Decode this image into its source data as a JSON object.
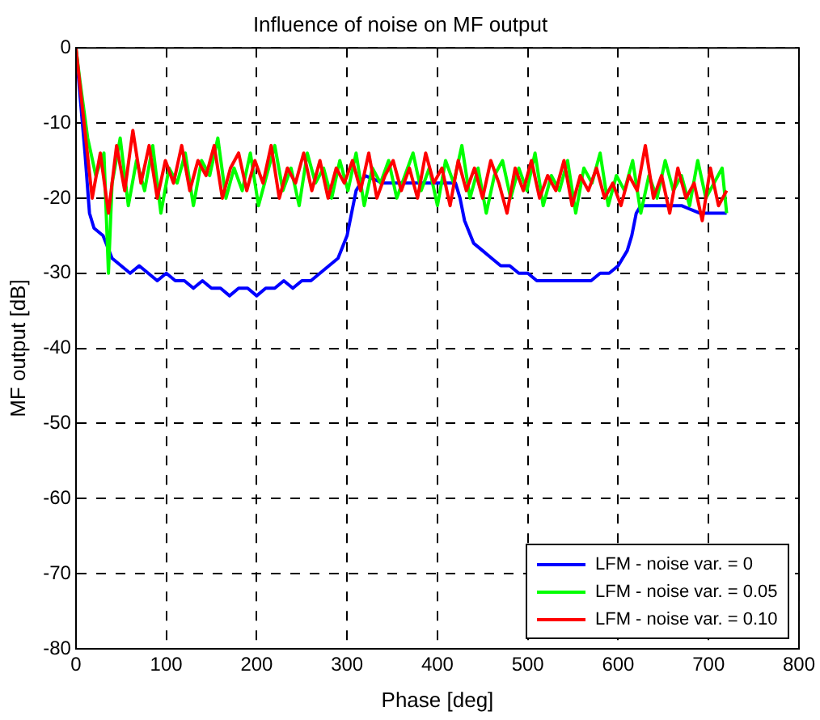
{
  "chart_data": {
    "type": "line",
    "title": "Influence of noise on MF output",
    "xlabel": "Phase [deg]",
    "ylabel": "MF output [dB]",
    "xlim": [
      0,
      800
    ],
    "xticks": [
      0,
      100,
      200,
      300,
      400,
      500,
      600,
      700,
      800
    ],
    "ylim": [
      -80,
      0
    ],
    "yticks": [
      -80,
      -70,
      -60,
      -50,
      -40,
      -30,
      -20,
      -10,
      0
    ],
    "grid": true,
    "legend": "bottom right",
    "marker": "none",
    "line_style": "solid",
    "series": [
      {
        "name": "LFM - noise var. = 0",
        "color": "#0000ff",
        "x": [
          0,
          10,
          15,
          20,
          30,
          40,
          50,
          60,
          70,
          80,
          90,
          100,
          110,
          120,
          130,
          140,
          150,
          160,
          170,
          180,
          190,
          200,
          210,
          220,
          230,
          240,
          250,
          260,
          270,
          280,
          290,
          300,
          305,
          310,
          315,
          320,
          340,
          360,
          380,
          400,
          420,
          425,
          430,
          440,
          450,
          460,
          470,
          480,
          490,
          500,
          510,
          520,
          530,
          540,
          550,
          560,
          570,
          580,
          590,
          600,
          610,
          615,
          620,
          625,
          630,
          650,
          670,
          690,
          700,
          720
        ],
        "values": [
          0,
          -14,
          -22,
          -24,
          -25,
          -28,
          -29,
          -30,
          -29,
          -30,
          -31,
          -30,
          -31,
          -31,
          -32,
          -31,
          -32,
          -32,
          -33,
          -32,
          -32,
          -33,
          -32,
          -32,
          -31,
          -32,
          -31,
          -31,
          -30,
          -29,
          -28,
          -25,
          -22,
          -19,
          -18,
          -17,
          -18,
          -18,
          -18,
          -18,
          -18,
          -20,
          -23,
          -26,
          -27,
          -28,
          -29,
          -29,
          -30,
          -30,
          -31,
          -31,
          -31,
          -31,
          -31,
          -31,
          -31,
          -30,
          -30,
          -29,
          -27,
          -25,
          -22,
          -21,
          -21,
          -21,
          -21,
          -22,
          -22,
          -22
        ]
      },
      {
        "name": "LFM - noise var. = 0.05",
        "color": "#00ff00",
        "x": [
          0,
          4,
          13,
          22,
          31,
          36,
          40,
          49,
          58,
          67,
          76,
          85,
          94,
          103,
          112,
          121,
          130,
          139,
          148,
          157,
          166,
          175,
          184,
          193,
          202,
          211,
          220,
          229,
          238,
          247,
          256,
          265,
          274,
          283,
          292,
          301,
          310,
          319,
          328,
          337,
          346,
          355,
          364,
          373,
          382,
          391,
          400,
          409,
          418,
          427,
          436,
          445,
          454,
          463,
          472,
          481,
          490,
          499,
          508,
          517,
          526,
          535,
          544,
          553,
          562,
          571,
          580,
          589,
          598,
          607,
          616,
          625,
          634,
          643,
          652,
          661,
          670,
          679,
          688,
          697,
          706,
          715,
          720
        ],
        "values": [
          0,
          -4,
          -12,
          -17,
          -14,
          -30,
          -18,
          -12,
          -21,
          -15,
          -19,
          -13,
          -22,
          -16,
          -18,
          -14,
          -21,
          -15,
          -17,
          -12,
          -20,
          -16,
          -19,
          -14,
          -21,
          -17,
          -13,
          -19,
          -16,
          -21,
          -14,
          -18,
          -16,
          -20,
          -15,
          -19,
          -14,
          -21,
          -16,
          -18,
          -15,
          -20,
          -17,
          -14,
          -19,
          -16,
          -21,
          -15,
          -18,
          -13,
          -20,
          -16,
          -22,
          -17,
          -15,
          -20,
          -16,
          -19,
          -14,
          -21,
          -17,
          -19,
          -15,
          -22,
          -16,
          -18,
          -14,
          -21,
          -17,
          -19,
          -15,
          -22,
          -17,
          -20,
          -15,
          -19,
          -17,
          -21,
          -15,
          -20,
          -18,
          -16,
          -22
        ]
      },
      {
        "name": "LFM - noise var. = 0.10",
        "color": "#ff0000",
        "x": [
          0,
          9,
          18,
          27,
          36,
          45,
          54,
          63,
          72,
          81,
          90,
          99,
          108,
          117,
          126,
          135,
          144,
          153,
          162,
          171,
          180,
          189,
          198,
          207,
          216,
          225,
          234,
          243,
          252,
          261,
          270,
          279,
          288,
          297,
          306,
          315,
          324,
          333,
          342,
          351,
          360,
          369,
          378,
          387,
          396,
          405,
          414,
          423,
          432,
          441,
          450,
          459,
          468,
          477,
          486,
          495,
          504,
          513,
          522,
          531,
          540,
          549,
          558,
          567,
          576,
          585,
          594,
          603,
          612,
          621,
          630,
          639,
          648,
          657,
          666,
          675,
          684,
          693,
          702,
          711,
          720
        ],
        "values": [
          0,
          -10,
          -20,
          -14,
          -22,
          -13,
          -19,
          -11,
          -18,
          -13,
          -20,
          -15,
          -18,
          -13,
          -19,
          -15,
          -17,
          -13,
          -20,
          -16,
          -14,
          -19,
          -15,
          -18,
          -13,
          -20,
          -16,
          -18,
          -14,
          -19,
          -15,
          -20,
          -16,
          -18,
          -15,
          -19,
          -14,
          -20,
          -17,
          -15,
          -19,
          -16,
          -20,
          -14,
          -18,
          -16,
          -21,
          -15,
          -19,
          -16,
          -20,
          -15,
          -18,
          -22,
          -16,
          -19,
          -15,
          -20,
          -17,
          -19,
          -15,
          -21,
          -17,
          -19,
          -16,
          -20,
          -18,
          -21,
          -17,
          -19,
          -13,
          -20,
          -17,
          -22,
          -16,
          -20,
          -18,
          -23,
          -16,
          -21,
          -19
        ]
      }
    ]
  }
}
